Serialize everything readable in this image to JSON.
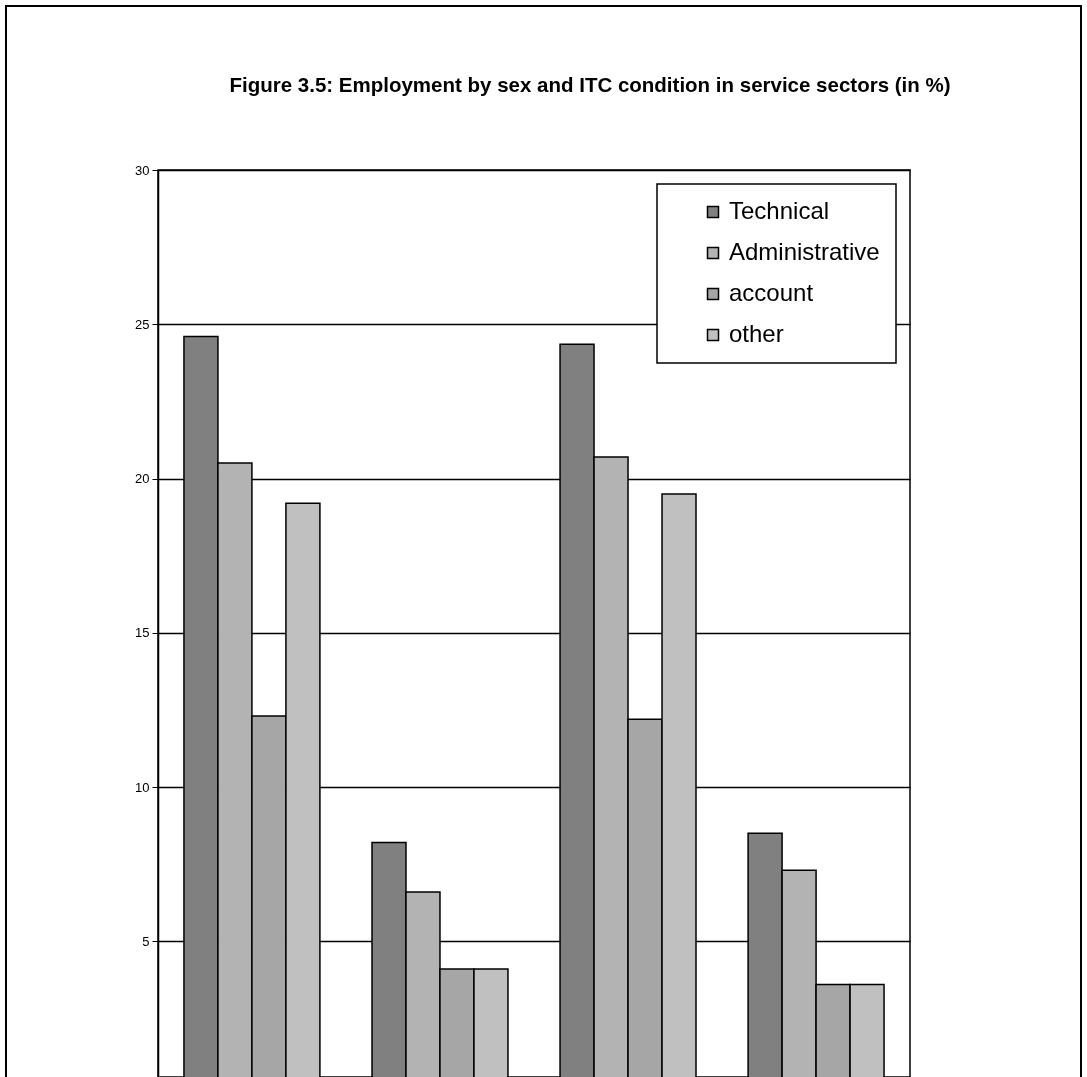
{
  "chart_data": {
    "type": "bar",
    "title": "Figure 3.5: Employment by sex and ITC condition in service sectors (in %)",
    "categories": [
      null,
      null,
      null,
      null
    ],
    "series": [
      {
        "name": "Technical",
        "color": "#808080",
        "values": [
          24.6,
          8.2,
          24.35,
          8.5
        ]
      },
      {
        "name": "Administrative",
        "color": "#b3b3b3",
        "values": [
          20.5,
          6.6,
          20.7,
          7.3
        ]
      },
      {
        "name": "account",
        "color": "#a6a6a6",
        "values": [
          12.3,
          4.1,
          12.2,
          3.6
        ]
      },
      {
        "name": "other",
        "color": "#c0c0c0",
        "values": [
          19.2,
          4.1,
          19.5,
          3.6
        ]
      }
    ],
    "ylim": [
      0.6,
      30
    ],
    "yticks": [
      5,
      10,
      15,
      20,
      25,
      30
    ],
    "grid": "y",
    "legend": "top right"
  }
}
